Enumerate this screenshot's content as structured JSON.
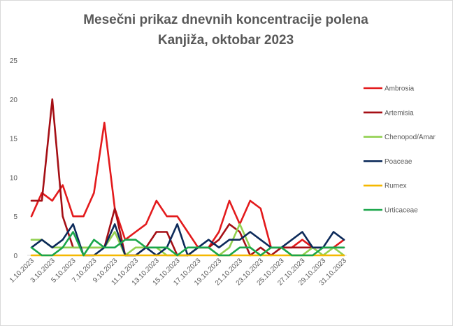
{
  "chart_data": {
    "type": "line",
    "title": [
      "Mesečni prikaz dnevnih koncentracije polena",
      "Kanjiža, oktobar 2023"
    ],
    "xlabel": "",
    "ylabel": "",
    "ylim": [
      0,
      25
    ],
    "yticks": [
      "0",
      "5",
      "10",
      "15",
      "20",
      "25"
    ],
    "grid": false,
    "legend_position": "right",
    "categories": [
      "1.10.2023",
      "2.10.2023",
      "3.10.2023",
      "4.10.2023",
      "5.10.2023",
      "6.10.2023",
      "7.10.2023",
      "8.10.2023",
      "9.10.2023",
      "10.10.2023",
      "11.10.2023",
      "12.10.2023",
      "13.10.2023",
      "14.10.2023",
      "15.10.2023",
      "16.10.2023",
      "17.10.2023",
      "18.10.2023",
      "19.10.2023",
      "20.10.2023",
      "21.10.2023",
      "22.10.2023",
      "23.10.2023",
      "24.10.2023",
      "25.10.2023",
      "26.10.2023",
      "27.10.2023",
      "28.10.2023",
      "29.10.2023",
      "30.10.2023",
      "31.10.2023"
    ],
    "tick_labels": [
      "1.10.2023",
      "3.10.2023",
      "5.10.2023",
      "7.10.2023",
      "9.10.2023",
      "11.10.2023",
      "13.10.2023",
      "15.10.2023",
      "17.10.2023",
      "19.10.2023",
      "21.10.2023",
      "23.10.2023",
      "25.10.2023",
      "27.10.2023",
      "29.10.2023",
      "31.10.2023"
    ],
    "series": [
      {
        "name": "Ambrosia",
        "color": "#e31a1c",
        "values": [
          5,
          8,
          7,
          9,
          5,
          5,
          8,
          17,
          6,
          2,
          3,
          4,
          7,
          5,
          5,
          3,
          1,
          1,
          3,
          7,
          4,
          7,
          6,
          1,
          1,
          1,
          2,
          1,
          1,
          1,
          2
        ]
      },
      {
        "name": "Artemisia",
        "color": "#a50f15",
        "values": [
          7,
          7,
          20,
          5,
          1,
          1,
          1,
          1,
          6,
          0,
          0,
          1,
          3,
          3,
          0,
          0,
          1,
          1,
          2,
          4,
          3,
          0,
          1,
          0,
          1,
          1,
          1,
          1,
          1,
          1,
          1
        ]
      },
      {
        "name": "Chenopod/Amar",
        "color": "#92d050",
        "values": [
          2,
          2,
          1,
          1,
          1,
          1,
          1,
          1,
          3,
          0,
          1,
          1,
          1,
          0,
          0,
          0,
          1,
          1,
          0,
          1,
          4,
          1,
          0,
          1,
          1,
          0,
          0,
          1,
          0,
          1,
          0
        ]
      },
      {
        "name": "Poaceae",
        "color": "#0c2a5a",
        "values": [
          1,
          2,
          1,
          2,
          4,
          0,
          0,
          1,
          4,
          0,
          0,
          1,
          0,
          1,
          4,
          0,
          1,
          2,
          1,
          2,
          2,
          3,
          2,
          1,
          1,
          2,
          3,
          1,
          1,
          3,
          2
        ]
      },
      {
        "name": "Rumex",
        "color": "#f5b800",
        "values": [
          0,
          0,
          0,
          0,
          0,
          0,
          0,
          0,
          0,
          0,
          0,
          0,
          0,
          0,
          0,
          0,
          0,
          0,
          0,
          0,
          0,
          0,
          0,
          0,
          0,
          0,
          0,
          0,
          0,
          0,
          0
        ]
      },
      {
        "name": "Urticaceae",
        "color": "#1aa64a",
        "values": [
          1,
          0,
          0,
          1,
          3,
          0,
          2,
          1,
          1,
          2,
          2,
          1,
          1,
          1,
          0,
          1,
          1,
          1,
          0,
          0,
          1,
          1,
          0,
          1,
          1,
          0,
          0,
          0,
          1,
          1,
          1
        ]
      }
    ]
  }
}
